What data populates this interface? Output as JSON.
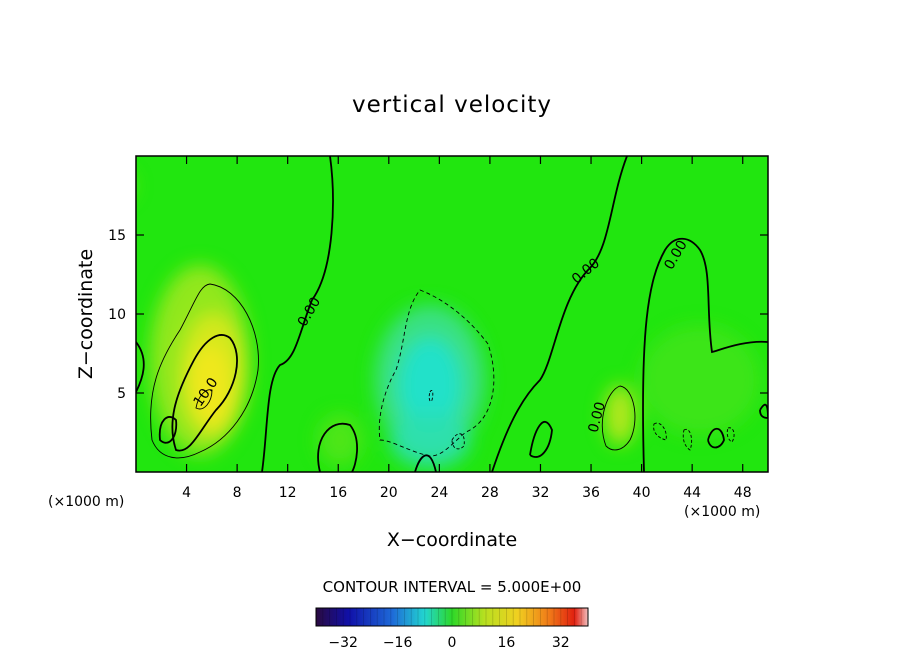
{
  "chart_data": {
    "type": "heatmap",
    "title": "vertical velocity",
    "xlabel": "X−coordinate",
    "ylabel": "Z−coordinate",
    "xlim": [
      0,
      50
    ],
    "ylim": [
      0,
      20
    ],
    "x_unit": "(×1000 m)",
    "y_unit": "(×1000 m)",
    "x_ticks": [
      4,
      8,
      12,
      16,
      20,
      24,
      28,
      32,
      36,
      40,
      44,
      48
    ],
    "y_ticks": [
      5,
      10,
      15
    ],
    "contour_interval_text": "CONTOUR INTERVAL = 5.000E+00",
    "colorbar": {
      "min": -40,
      "max": 40,
      "ticks": [
        -32,
        -16,
        0,
        16,
        32
      ],
      "tick_labels": [
        "−32",
        "−16",
        "0",
        "16",
        "32"
      ]
    },
    "contour_labels": [
      {
        "text": "10.0",
        "x": 5.8,
        "z": 4.9
      },
      {
        "text": "0.00",
        "x": 14.0,
        "z": 10.0
      },
      {
        "text": "0.00",
        "x": 35.8,
        "z": 12.5
      },
      {
        "text": "0.00",
        "x": 43.0,
        "z": 13.6
      },
      {
        "text": "0.00",
        "x": 36.8,
        "z": 3.4
      }
    ],
    "features": [
      {
        "kind": "updraft",
        "x": 6.0,
        "z": 6.5,
        "peak": 15
      },
      {
        "kind": "updraft",
        "x": 38.0,
        "z": 3.5,
        "peak": 6
      },
      {
        "kind": "updraft",
        "x": 16.0,
        "z": 2.5,
        "peak": 3
      },
      {
        "kind": "downdraft",
        "x": 23.5,
        "z": 6.0,
        "peak": -8
      },
      {
        "kind": "downdraft",
        "x": 24.0,
        "z": 2.0,
        "peak": -4
      }
    ]
  },
  "colors": {
    "background": "#ffffff",
    "field_base": "#21e60f",
    "updraft": "#f0e81a",
    "downdraft": "#22e0cc",
    "contour": "#000000"
  }
}
